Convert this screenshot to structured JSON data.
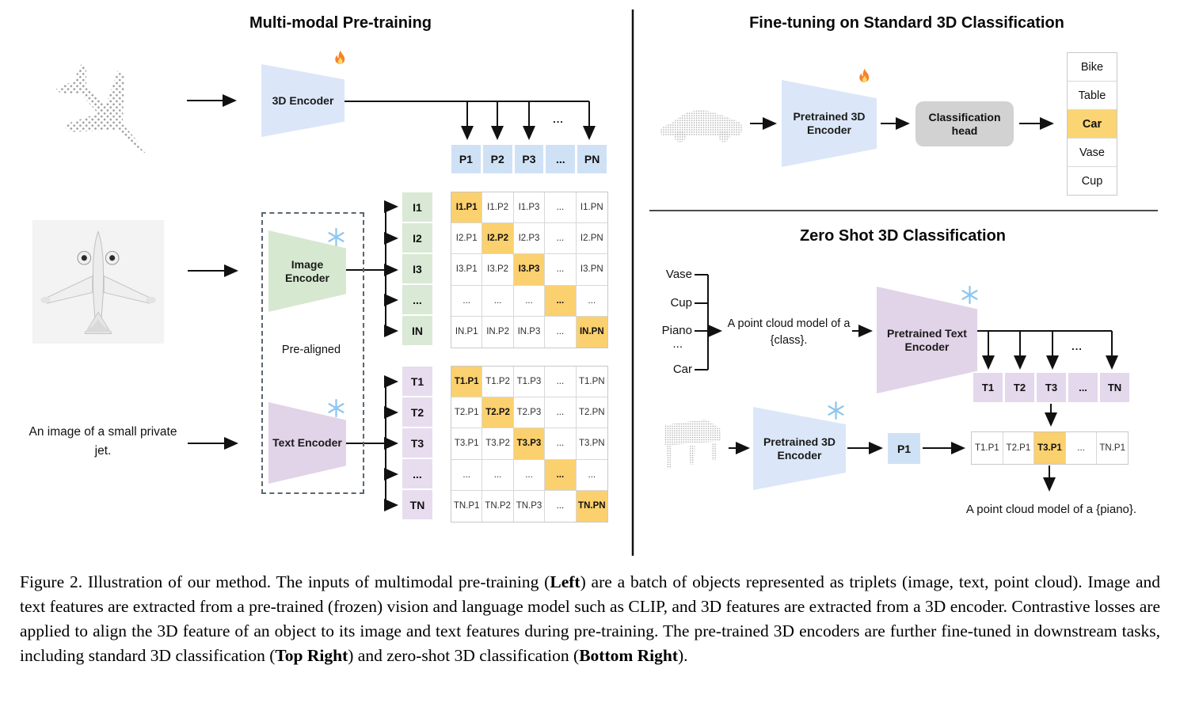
{
  "left": {
    "title": "Multi-modal Pre-training",
    "encoder3d_label": "3D Encoder",
    "image_encoder_label": "Image Encoder",
    "text_encoder_label": "Text Encoder",
    "prealigned_label": "Pre-aligned",
    "jet_caption": "An image of a small private jet.",
    "dots": "...",
    "p_row": [
      "P1",
      "P2",
      "P3",
      "...",
      "PN"
    ],
    "i_col": [
      "I1",
      "I2",
      "I3",
      "...",
      "IN"
    ],
    "t_col": [
      "T1",
      "T2",
      "T3",
      "...",
      "TN"
    ],
    "image_matrix": [
      [
        {
          "t": "I1.P1",
          "h": true
        },
        "I1.P2",
        "I1.P3",
        "...",
        "I1.PN"
      ],
      [
        "I2.P1",
        {
          "t": "I2.P2",
          "h": true
        },
        "I2.P3",
        "...",
        "I2.PN"
      ],
      [
        "I3.P1",
        "I3.P2",
        {
          "t": "I3.P3",
          "h": true
        },
        "...",
        "I3.PN"
      ],
      [
        "...",
        "...",
        "...",
        {
          "t": "...",
          "h": true
        },
        "..."
      ],
      [
        "IN.P1",
        "IN.P2",
        "IN.P3",
        "...",
        {
          "t": "IN.PN",
          "h": true
        }
      ]
    ],
    "text_matrix": [
      [
        {
          "t": "T1.P1",
          "h": true
        },
        "T1.P2",
        "T1.P3",
        "...",
        "T1.PN"
      ],
      [
        "T2.P1",
        {
          "t": "T2.P2",
          "h": true
        },
        "T2.P3",
        "...",
        "T2.PN"
      ],
      [
        "T3.P1",
        "T3.P2",
        {
          "t": "T3.P3",
          "h": true
        },
        "...",
        "T3.PN"
      ],
      [
        "...",
        "...",
        "...",
        {
          "t": "...",
          "h": true
        },
        "..."
      ],
      [
        "TN.P1",
        "TN.P2",
        "TN.P3",
        "...",
        {
          "t": "TN.PN",
          "h": true
        }
      ]
    ]
  },
  "finetune": {
    "title": "Fine-tuning on Standard 3D Classification",
    "encoder_label": "Pretrained 3D Encoder",
    "head_label": "Classification head",
    "classes": [
      "Bike",
      "Table",
      {
        "t": "Car",
        "h": true
      },
      "Vase",
      "Cup"
    ]
  },
  "zeroshot": {
    "title": "Zero Shot 3D Classification",
    "words": [
      "Vase",
      "Cup",
      "Piano",
      "...",
      "Car"
    ],
    "prompt": "A point cloud model of a {class}.",
    "text_encoder_label": "Pretrained Text Encoder",
    "encoder3d_label": "Pretrained 3D Encoder",
    "p1_label": "P1",
    "dots": "...",
    "t_row": [
      "T1",
      "T2",
      "T3",
      "...",
      "TN"
    ],
    "match_row": [
      "T1.P1",
      "T2.P1",
      {
        "t": "T3.P1",
        "h": true
      },
      "...",
      "TN.P1"
    ],
    "result_caption": "A point cloud model of a {piano}."
  },
  "caption": {
    "parts": [
      {
        "text": "Figure 2. Illustration of our method. The inputs of multimodal pre-training (",
        "bold": false
      },
      {
        "text": "Left",
        "bold": true
      },
      {
        "text": ") are a batch of objects represented as triplets (image, text, point cloud). Image and text features are extracted from a pre-trained (frozen) vision and language model such as CLIP, and 3D features are extracted from a 3D encoder. Contrastive losses are applied to align the 3D feature of an object to its image and text features during pre-training. The pre-trained 3D encoders are further fine-tuned in downstream tasks, including standard 3D classification (",
        "bold": false
      },
      {
        "text": "Top Right",
        "bold": true
      },
      {
        "text": ") and zero-shot 3D classification (",
        "bold": false
      },
      {
        "text": "Bottom Right",
        "bold": true
      },
      {
        "text": ").",
        "bold": false
      }
    ]
  },
  "colors": {
    "encoder_blue": "#dbe7f8",
    "encoder_green": "#d7e8d1",
    "encoder_purple": "#e1d3e8",
    "cell_blue": "#cfe1f5",
    "cell_green": "#d9e9d5",
    "cell_purple": "#e7ddef",
    "highlight_orange": "#fbd06e",
    "head_gray": "#d2d2d2"
  }
}
